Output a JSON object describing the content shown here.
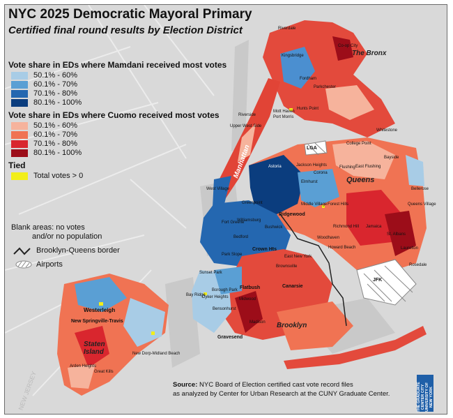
{
  "title": "NYC 2025 Democratic Mayoral Primary",
  "subtitle": "Certified final round results by Election District",
  "legend": {
    "mamdani_heading": "Vote share in EDs where Mamdani received most votes",
    "mamdani_items": [
      {
        "label": "50.1% - 60%",
        "color": "#a8cce6"
      },
      {
        "label": "60.1% - 70%",
        "color": "#5a9fd4"
      },
      {
        "label": "70.1% - 80%",
        "color": "#2467b0"
      },
      {
        "label": "80.1% - 100%",
        "color": "#0b3d7e"
      }
    ],
    "cuomo_heading": "Vote share in EDs where Cuomo received most votes",
    "cuomo_items": [
      {
        "label": "50.1% - 60%",
        "color": "#f6b39c"
      },
      {
        "label": "60.1% - 70%",
        "color": "#f07353"
      },
      {
        "label": "70.1% - 80%",
        "color": "#d9262e"
      },
      {
        "label": "80.1% - 100%",
        "color": "#9c0d19"
      }
    ],
    "tied_heading": "Tied",
    "tied_item": {
      "label": "Total votes > 0",
      "color": "#f2ee1a"
    },
    "blank_note_1": "Blank areas: no votes",
    "blank_note_2": "and/or no population",
    "border_label": "Brooklyn-Queens border",
    "airports_label": "Airports"
  },
  "borough_labels": {
    "bronx": "The Bronx",
    "manhattan": "Manhattan",
    "queens": "Queens",
    "brooklyn": "Brooklyn",
    "staten_island": "Staten\nIsland"
  },
  "neighborhood_labels": [
    "Riverdale",
    "Co-op City",
    "Kingsbridge",
    "Fordham",
    "Parkchester",
    "Hunts Point",
    "Mott Haven",
    "Port Morris",
    "Riverside",
    "Upper West Side",
    "Ridgewood",
    "Astoria",
    "Jackson Heights",
    "Corona",
    "Flushing",
    "East Flushing",
    "Elmhurst",
    "Forest Hills",
    "Middle Village",
    "Richmond Hill",
    "Jamaica",
    "St. Albans",
    "Bellerose",
    "Queens Village",
    "Laurelton",
    "Rosedale",
    "Greenpoint",
    "Williamsburg",
    "Bushwick",
    "Bedford",
    "Crown Hts",
    "Park Slope",
    "Flatbush",
    "Canarsie",
    "Borough Park",
    "Bay Ridge",
    "Dyker Heights",
    "Midwood",
    "Gravesend",
    "Bensonhurst",
    "Madison",
    "East New York",
    "Brownsville",
    "Westerleigh",
    "New Springville-Travis",
    "Great Kills",
    "Arden Heights",
    "New Dorp-Midland Beach",
    "Whitestone",
    "College Point",
    "Bayside",
    "LGA",
    "JFK",
    "West Village",
    "Woodhaven",
    "Howard Beach",
    "Sunset Park",
    "Fort Greene"
  ],
  "source": {
    "label": "Source:",
    "line1": "NYC Board of Election certified cast vote record files",
    "line2": "as analyzed by Center for Urban Research at the CUNY Graduate Center."
  },
  "logo_text": "THE GRADUATE CENTER CITY UNIVERSITY OF NEW YORK",
  "watermark": "NEW JERSEY"
}
